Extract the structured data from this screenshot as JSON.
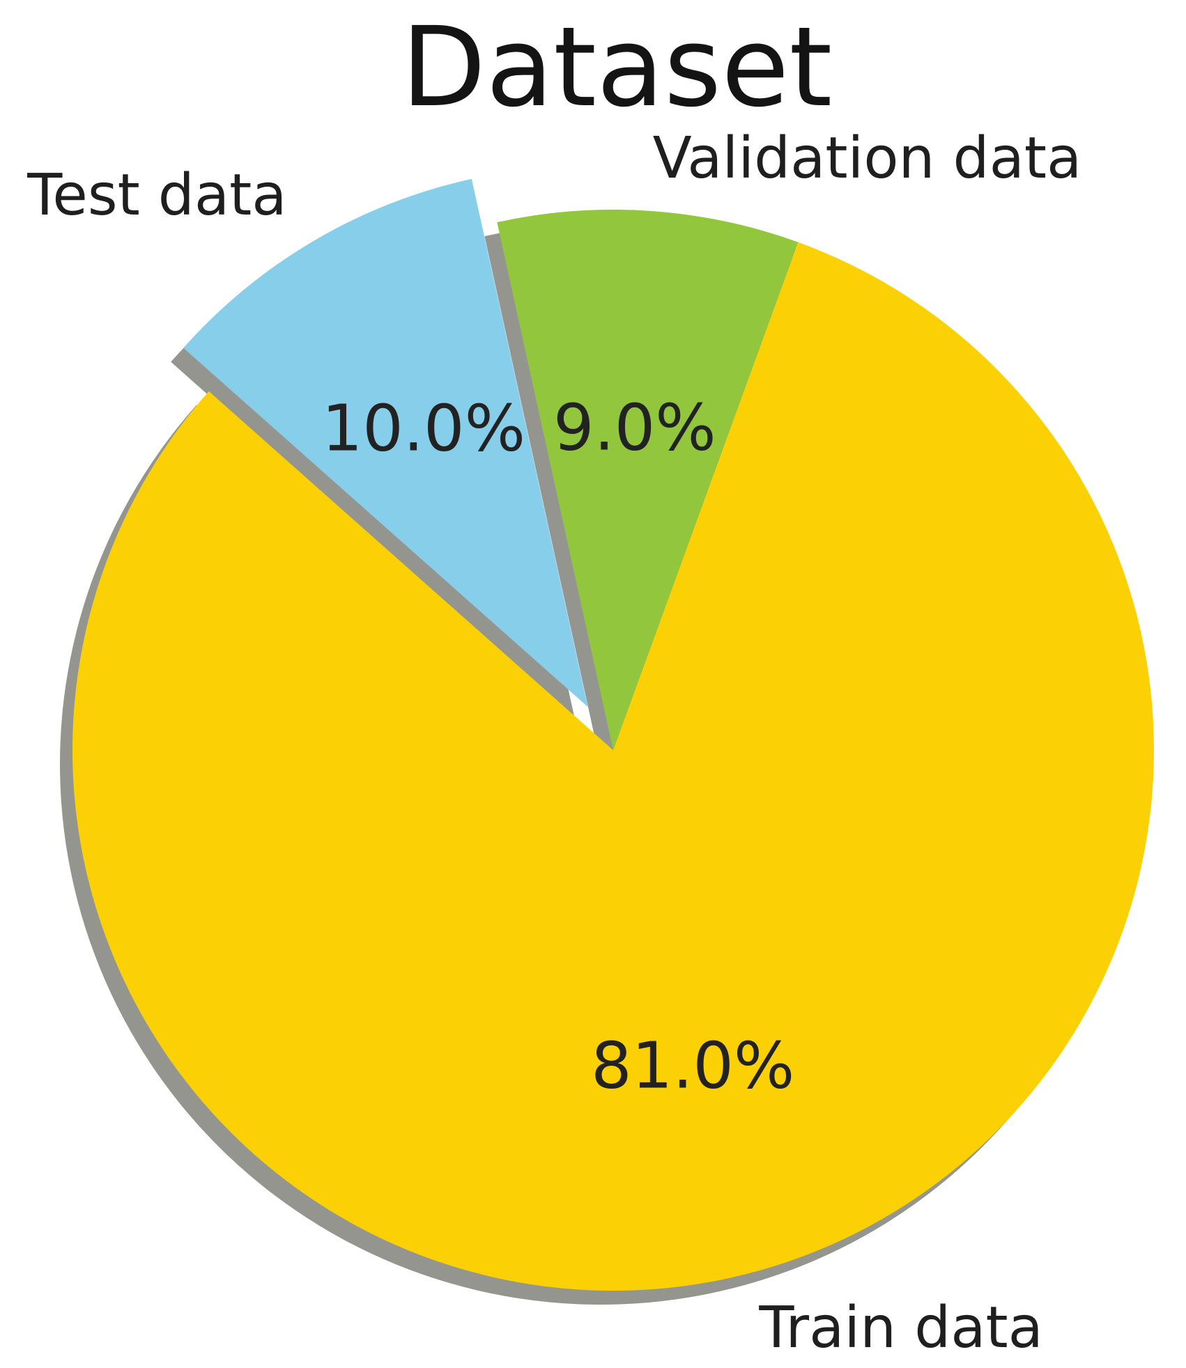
{
  "chart_data": {
    "type": "pie",
    "title": "Dataset",
    "slices": [
      {
        "label": "Validation data",
        "value": 9.0,
        "pct_label": "9.0%",
        "color": "#91c63d",
        "explode": 0.0
      },
      {
        "label": "Test data",
        "value": 10.0,
        "pct_label": "10.0%",
        "color": "#87ceeb",
        "explode": 0.093
      },
      {
        "label": "Train data",
        "value": 81.0,
        "pct_label": "81.0%",
        "color": "#fbd106",
        "explode": 0.0
      }
    ],
    "start_angle_deg": 70.0,
    "direction": "counterclockwise",
    "shadow": true,
    "shadow_color": "#8c8c86",
    "label_distance": 1.1,
    "pct_distance": 0.6,
    "text_color": "#1f1f1f",
    "background": "#ffffff",
    "legend_position": "none",
    "grid": false
  }
}
